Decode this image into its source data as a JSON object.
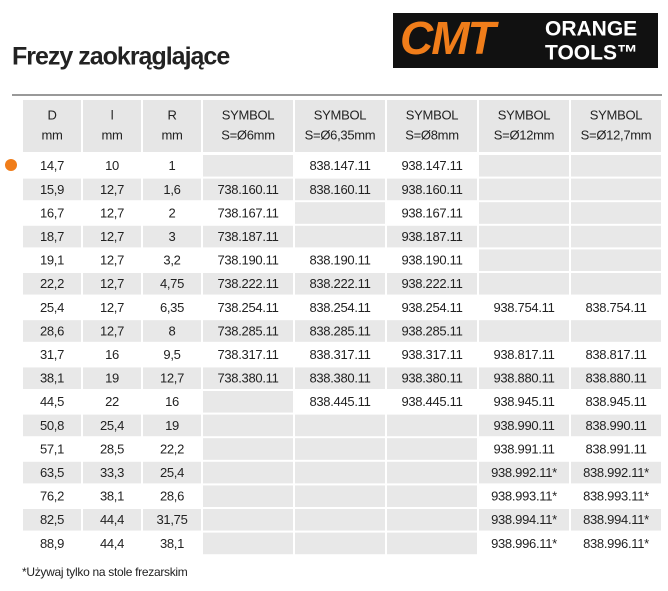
{
  "header": {
    "title": "Frezy zaokrąglające"
  },
  "logo": {
    "brand": "CMT",
    "line1": "ORANGE",
    "line2": "TOOLS™"
  },
  "table": {
    "columns": [
      [
        "D",
        "mm"
      ],
      [
        "l",
        "mm"
      ],
      [
        "R",
        "mm"
      ],
      [
        "SYMBOL",
        "S=Ø6mm"
      ],
      [
        "SYMBOL",
        "S=Ø6,35mm"
      ],
      [
        "SYMBOL",
        "S=Ø8mm"
      ],
      [
        "SYMBOL",
        "S=Ø12mm"
      ],
      [
        "SYMBOL",
        "S=Ø12,7mm"
      ]
    ],
    "rows": [
      [
        "14,7",
        "10",
        "1",
        null,
        "838.147.11",
        "938.147.11",
        null,
        null
      ],
      [
        "15,9",
        "12,7",
        "1,6",
        "738.160.11",
        "838.160.11",
        "938.160.11",
        null,
        null
      ],
      [
        "16,7",
        "12,7",
        "2",
        "738.167.11",
        null,
        "938.167.11",
        null,
        null
      ],
      [
        "18,7",
        "12,7",
        "3",
        "738.187.11",
        null,
        "938.187.11",
        null,
        null
      ],
      [
        "19,1",
        "12,7",
        "3,2",
        "738.190.11",
        "838.190.11",
        "938.190.11",
        null,
        null
      ],
      [
        "22,2",
        "12,7",
        "4,75",
        "738.222.11",
        "838.222.11",
        "938.222.11",
        null,
        null
      ],
      [
        "25,4",
        "12,7",
        "6,35",
        "738.254.11",
        "838.254.11",
        "938.254.11",
        "938.754.11",
        "838.754.11"
      ],
      [
        "28,6",
        "12,7",
        "8",
        "738.285.11",
        "838.285.11",
        "938.285.11",
        null,
        null
      ],
      [
        "31,7",
        "16",
        "9,5",
        "738.317.11",
        "838.317.11",
        "938.317.11",
        "938.817.11",
        "838.817.11"
      ],
      [
        "38,1",
        "19",
        "12,7",
        "738.380.11",
        "838.380.11",
        "938.380.11",
        "938.880.11",
        "838.880.11"
      ],
      [
        "44,5",
        "22",
        "16",
        null,
        "838.445.11",
        "938.445.11",
        "938.945.11",
        "838.945.11"
      ],
      [
        "50,8",
        "25,4",
        "19",
        null,
        null,
        null,
        "938.990.11",
        "838.990.11"
      ],
      [
        "57,1",
        "28,5",
        "22,2",
        null,
        null,
        null,
        "938.991.11",
        "838.991.11"
      ],
      [
        "63,5",
        "33,3",
        "25,4",
        null,
        null,
        null,
        "938.992.11*",
        "838.992.11*"
      ],
      [
        "76,2",
        "38,1",
        "28,6",
        null,
        null,
        null,
        "938.993.11*",
        "838.993.11*"
      ],
      [
        "82,5",
        "44,4",
        "31,75",
        null,
        null,
        null,
        "938.994.11*",
        "838.994.11*"
      ],
      [
        "88,9",
        "44,4",
        "38,1",
        null,
        null,
        null,
        "938.996.11*",
        "838.996.11*"
      ]
    ]
  },
  "footnote": "*Używaj tylko na stole frezarskim"
}
